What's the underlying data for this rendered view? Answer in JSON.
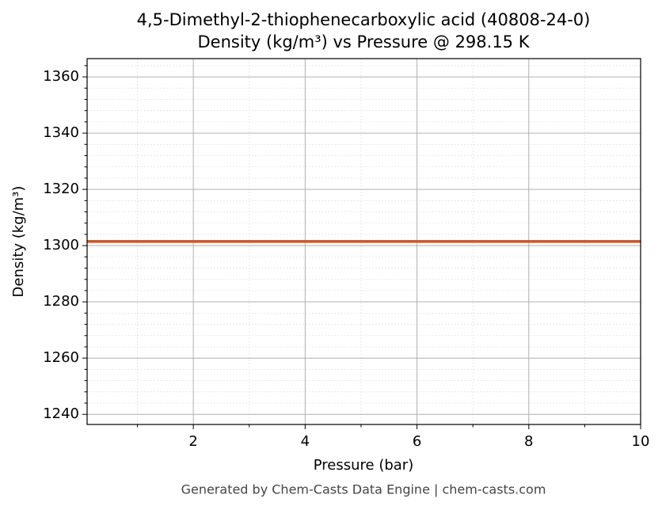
{
  "chart_data": {
    "type": "line",
    "title": "4,5-Dimethyl-2-thiophenecarboxylic acid (40808-24-0)",
    "subtitle": "Density (kg/m³) vs Pressure @ 298.15 K",
    "x_label": "Pressure (bar)",
    "y_label": "Density (kg/m³)",
    "footer": "Generated by Chem-Casts Data Engine | chem-casts.com",
    "x": [
      0.1,
      10
    ],
    "series": [
      {
        "name": "Density",
        "color": "#c8552d",
        "values": [
          1301.5,
          1301.5
        ]
      }
    ],
    "xlim": [
      0.1,
      10
    ],
    "xticks": [
      2,
      4,
      6,
      8,
      10
    ],
    "xminorticks": [
      1,
      3,
      5,
      7,
      9
    ],
    "ylim": [
      1236.4,
      1366.5
    ],
    "yticks": [
      1240,
      1260,
      1280,
      1300,
      1320,
      1340,
      1360
    ],
    "yminorticks": [
      1244,
      1248,
      1252,
      1256,
      1264,
      1268,
      1272,
      1276,
      1284,
      1288,
      1292,
      1296,
      1304,
      1308,
      1312,
      1316,
      1324,
      1328,
      1332,
      1336,
      1344,
      1348,
      1352,
      1356,
      1364
    ],
    "grid": true
  }
}
